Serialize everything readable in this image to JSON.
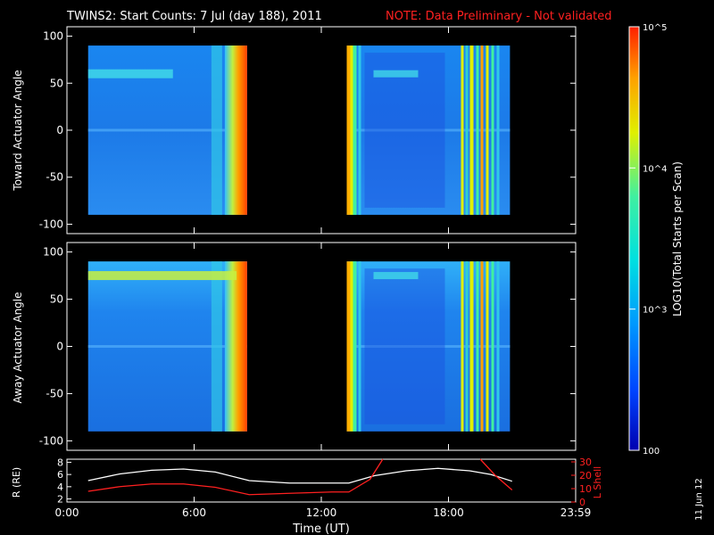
{
  "header": {
    "title": "TWINS2: Start Counts:  7 Jul (day 188), 2011",
    "note": "NOTE: Data Preliminary - Not validated"
  },
  "side_date": "11 Jun 12",
  "colorbar": {
    "label": "LOG10(Total Starts per Scan)",
    "scale": "log",
    "range": [
      100,
      100000
    ],
    "tick_labels": [
      "100",
      "10^3",
      "10^4",
      "10^5"
    ],
    "colors": [
      "#0000b0",
      "#0044ff",
      "#0099ff",
      "#00e0e0",
      "#40f0a0",
      "#e0f000",
      "#ffa000",
      "#ff2000"
    ]
  },
  "chart_data": [
    {
      "type": "heatmap",
      "ylabel": "Toward Actuator Angle",
      "y_ticks": [
        "100",
        "50",
        "0",
        "-50",
        "-100"
      ],
      "ylim": [
        -110,
        110
      ],
      "x_range_hours": [
        0,
        24
      ],
      "data_extent_angle": [
        -90,
        90
      ],
      "segments_hours": [
        [
          1.0,
          8.5
        ],
        [
          13.2,
          20.9
        ]
      ],
      "features": [
        {
          "name": "Enhanced band near 60 deg",
          "hours": [
            1.0,
            5.0
          ],
          "angle": 60
        },
        {
          "name": "High count edge",
          "hours": [
            7.8,
            8.5
          ],
          "level": "high"
        }
      ]
    },
    {
      "type": "heatmap",
      "ylabel": "Away Actuator Angle",
      "y_ticks": [
        "100",
        "50",
        "0",
        "-50",
        "-100"
      ],
      "ylim": [
        -110,
        110
      ],
      "x_range_hours": [
        0,
        24
      ],
      "data_extent_angle": [
        -90,
        90
      ],
      "segments_hours": [
        [
          1.0,
          8.5
        ],
        [
          13.2,
          20.9
        ]
      ],
      "features": [
        {
          "name": "Enhanced band near 75 deg",
          "hours": [
            1.0,
            8.0
          ],
          "angle": 75
        },
        {
          "name": "High count edge",
          "hours": [
            7.8,
            8.5
          ],
          "level": "high"
        }
      ]
    },
    {
      "type": "line",
      "xlabel": "Time (UT)",
      "x_tick_labels": [
        "0:00",
        "6:00",
        "12:00",
        "18:00",
        "23:59"
      ],
      "x_ticks_hours": [
        0,
        6,
        12,
        18,
        24
      ],
      "left_axis": {
        "label": "R (RE)",
        "ticks": [
          "8",
          "6",
          "4",
          "2"
        ],
        "ylim": [
          1.5,
          8.5
        ]
      },
      "right_axis": {
        "label": "L Shell",
        "ticks": [
          "30",
          "20",
          "10",
          "0"
        ],
        "ylim": [
          0,
          32
        ]
      },
      "series": [
        {
          "color": "#ffffff",
          "x": [
            1.0,
            2.5,
            4.0,
            5.5,
            7.0,
            8.6,
            10.5,
            12.5,
            13.3,
            14.5,
            16.0,
            17.5,
            19.0,
            20.0,
            21.0
          ],
          "y": [
            5.0,
            6.1,
            6.7,
            6.9,
            6.4,
            5.0,
            4.6,
            4.6,
            4.6,
            5.8,
            6.6,
            7.0,
            6.6,
            6.0,
            4.9
          ]
        },
        {
          "color": "#ff2020",
          "axis": "right",
          "x": [
            1.0,
            2.5,
            4.0,
            5.5,
            7.0,
            8.6,
            10.5,
            12.5,
            13.3,
            14.3,
            14.9
          ],
          "y": [
            8.0,
            11.5,
            13.5,
            13.5,
            11.0,
            5.5,
            6.5,
            7.5,
            7.5,
            17.0,
            32.0
          ]
        },
        {
          "color": "#ff2020",
          "axis": "right",
          "x": [
            19.5,
            20.2,
            21.0
          ],
          "y": [
            32.0,
            20.0,
            9.0
          ]
        }
      ]
    }
  ]
}
